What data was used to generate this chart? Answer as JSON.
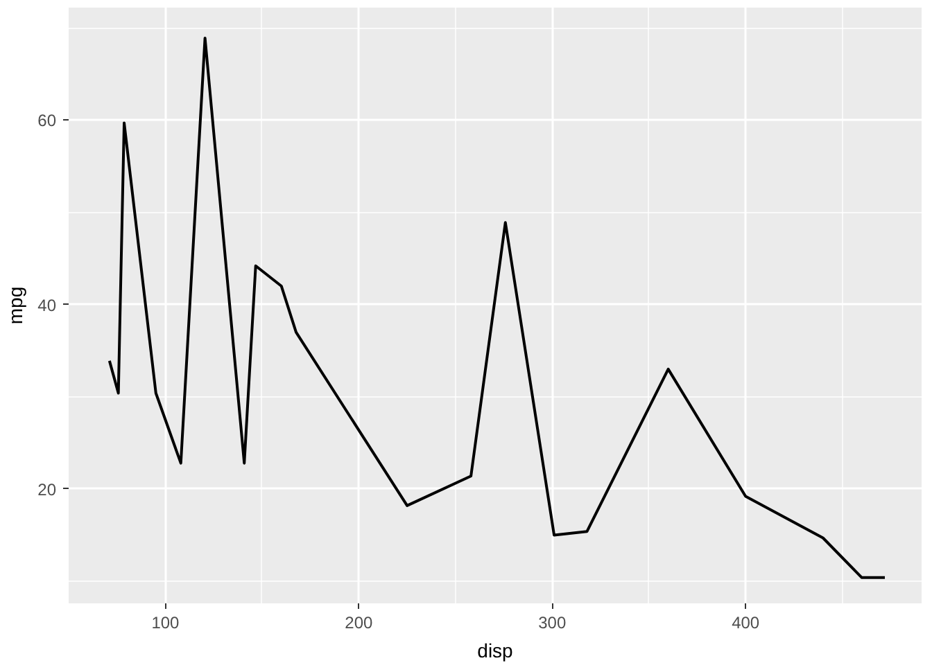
{
  "chart_data": {
    "type": "line",
    "xlabel": "disp",
    "ylabel": "mpg",
    "x": [
      71.1,
      75.7,
      78.7,
      95.1,
      108,
      120.5,
      140.8,
      146.7,
      160,
      167.6,
      225,
      258,
      275.8,
      301,
      318,
      360,
      400,
      440,
      460,
      472
    ],
    "series": [
      {
        "color": "#000000",
        "values": [
          33.9,
          30.4,
          59.7,
          30.4,
          22.8,
          68.9,
          22.8,
          44.2,
          42,
          37,
          18.2,
          21.4,
          48.9,
          15,
          15.4,
          33,
          19.2,
          14.7,
          10.4,
          10.4
        ]
      }
    ],
    "xlim": [
      50,
      491
    ],
    "ylim": [
      7.6,
      72.2
    ],
    "xticks": [
      100,
      200,
      300,
      400
    ],
    "yticks": [
      20,
      40,
      60
    ],
    "grid": true,
    "marker": "none",
    "line_style": "solid"
  }
}
